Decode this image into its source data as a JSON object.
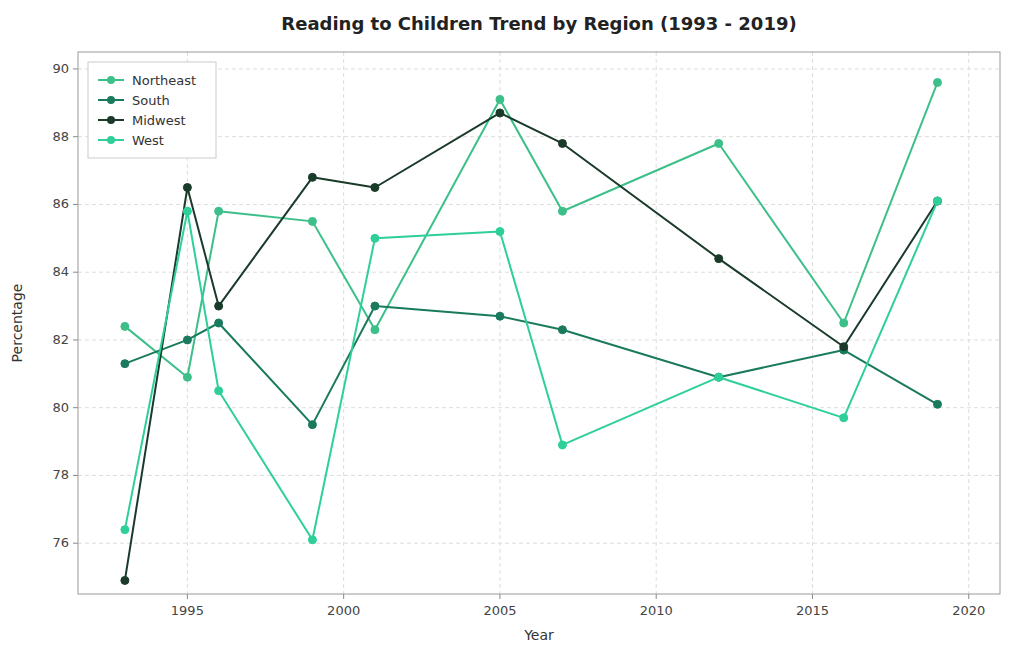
{
  "chart_data": {
    "type": "line",
    "title": "Reading to Children Trend by Region (1993 - 2019)",
    "xlabel": "Year",
    "ylabel": "Percentage",
    "x": [
      1993,
      1995,
      1996,
      1999,
      2001,
      2005,
      2007,
      2012,
      2016,
      2019
    ],
    "series": [
      {
        "name": "Northeast",
        "color": "#3dbf8a",
        "marker": "circle",
        "values": [
          82.4,
          80.9,
          85.8,
          85.5,
          82.3,
          89.1,
          85.8,
          87.8,
          82.5,
          89.6
        ]
      },
      {
        "name": "South",
        "color": "#1a7a5e",
        "marker": "circle",
        "values": [
          81.3,
          82.0,
          82.5,
          79.5,
          83.0,
          82.7,
          82.3,
          80.9,
          81.7,
          80.1
        ]
      },
      {
        "name": "Midwest",
        "color": "#1a3a2a",
        "marker": "circle",
        "values": [
          74.9,
          86.5,
          83.0,
          86.8,
          86.5,
          88.7,
          87.8,
          84.4,
          81.8,
          86.1
        ]
      },
      {
        "name": "West",
        "color": "#2ecf9a",
        "marker": "circle",
        "values": [
          76.4,
          85.8,
          80.5,
          76.1,
          85.0,
          85.2,
          78.9,
          80.9,
          79.7,
          86.1
        ]
      }
    ],
    "xlim": [
      1991.5,
      2021.0
    ],
    "ylim": [
      74.5,
      90.5
    ],
    "xticks": [
      1995,
      2000,
      2005,
      2010,
      2015,
      2020
    ],
    "yticks": [
      76,
      78,
      80,
      82,
      84,
      86,
      88,
      90
    ],
    "grid": true,
    "legend": "upper left"
  }
}
